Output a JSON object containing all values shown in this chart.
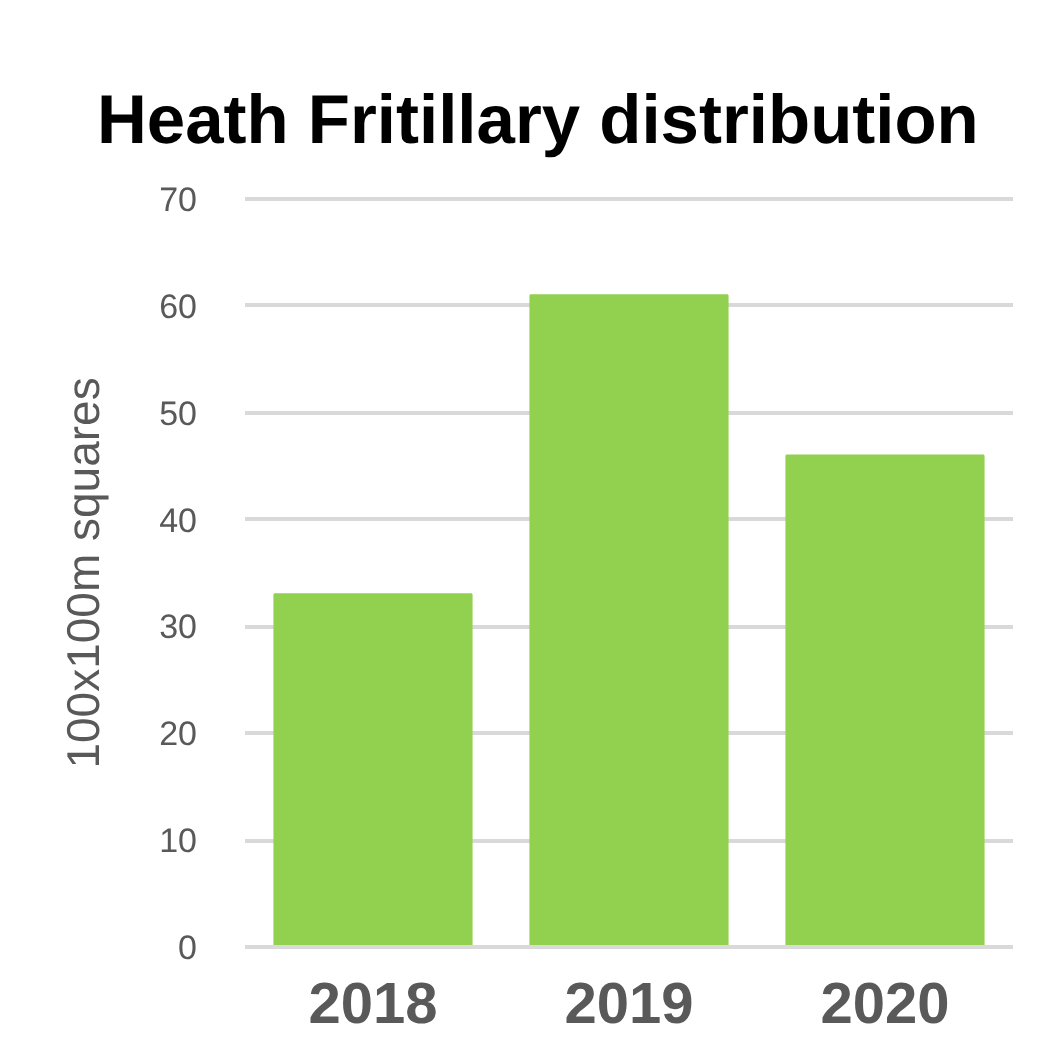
{
  "chart_data": {
    "type": "bar",
    "title": "Heath Fritillary distribution",
    "ylabel": "100x100m squares",
    "categories": [
      "2018",
      "2019",
      "2020"
    ],
    "values": [
      33,
      61,
      46
    ],
    "color": "#92d050",
    "ylim": [
      0,
      70
    ],
    "yticks": [
      0,
      10,
      20,
      30,
      40,
      50,
      60,
      70
    ],
    "grid": "y"
  }
}
